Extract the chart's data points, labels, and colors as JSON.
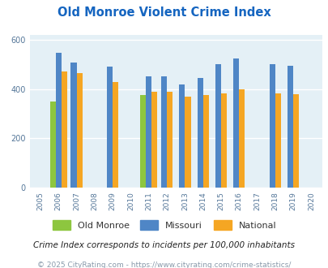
{
  "title": "Old Monroe Violent Crime Index",
  "years": [
    2005,
    2006,
    2007,
    2008,
    2009,
    2010,
    2011,
    2012,
    2013,
    2014,
    2015,
    2016,
    2017,
    2018,
    2019,
    2020
  ],
  "old_monroe": {
    "2006": 350,
    "2011": 375
  },
  "missouri": {
    "2006": 548,
    "2007": 508,
    "2009": 490,
    "2011": 450,
    "2012": 452,
    "2013": 418,
    "2014": 445,
    "2015": 500,
    "2016": 525,
    "2018": 502,
    "2019": 493
  },
  "national": {
    "2006": 470,
    "2007": 465,
    "2009": 428,
    "2011": 390,
    "2012": 390,
    "2013": 368,
    "2014": 376,
    "2015": 383,
    "2016": 400,
    "2018": 382,
    "2019": 380
  },
  "bar_width": 0.32,
  "colors": {
    "old_monroe": "#8dc63f",
    "missouri": "#4f86c6",
    "national": "#f5a623"
  },
  "ylim": [
    0,
    620
  ],
  "yticks": [
    0,
    200,
    400,
    600
  ],
  "bg_color": "#e4f0f6",
  "grid_color": "#ffffff",
  "title_color": "#1565c0",
  "legend_labels": [
    "Old Monroe",
    "Missouri",
    "National"
  ],
  "footnote1": "Crime Index corresponds to incidents per 100,000 inhabitants",
  "footnote2": "© 2025 CityRating.com - https://www.cityrating.com/crime-statistics/",
  "footnote_color1": "#222222",
  "footnote_color2": "#8899aa"
}
